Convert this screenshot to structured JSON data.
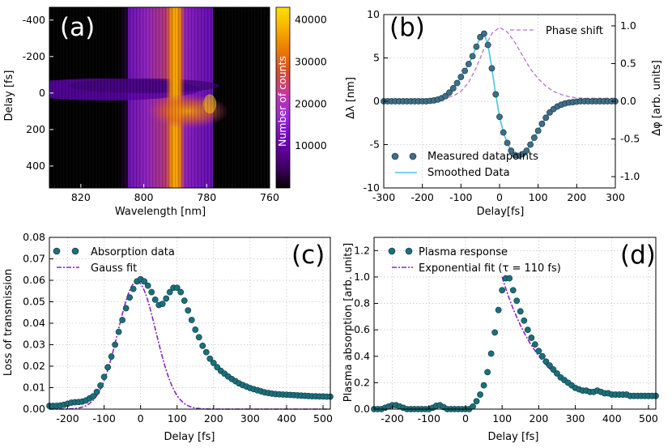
{
  "chart_data": [
    {
      "panel": "(a)",
      "type": "heatmap",
      "xlabel": "Wavelength [nm]",
      "ylabel": "Delay [fs]",
      "xlim": [
        830,
        760
      ],
      "ylim": [
        -470,
        520
      ],
      "xticks": [
        820,
        800,
        780,
        760
      ],
      "yticks": [
        -400,
        -200,
        0,
        200,
        400
      ],
      "colorbar": {
        "label": "Number of counts",
        "range": [
          0,
          43000
        ],
        "ticks": [
          10000,
          20000,
          30000,
          40000
        ],
        "colors": [
          "#000000",
          "#5a007a",
          "#8a1ee6",
          "#b62bb0",
          "#d6521f",
          "#f08a00",
          "#fcd000"
        ]
      },
      "features": [
        {
          "name": "peak band",
          "wavelength_nm": [
            793,
            787
          ],
          "delay_fs": [
            -470,
            520
          ],
          "level": 43000
        },
        {
          "name": "signal band",
          "wavelength_nm": [
            805,
            778
          ],
          "delay_fs": [
            -470,
            520
          ],
          "level": 15000
        },
        {
          "name": "blue-shift lobe",
          "wavelength_nm": [
            800,
            778
          ],
          "delay_fs": [
            40,
            220
          ],
          "level": 30000
        },
        {
          "name": "red-shift streak",
          "wavelength_nm": [
            825,
            805
          ],
          "delay_fs": [
            -80,
            40
          ],
          "level": 8000
        }
      ]
    },
    {
      "panel": "(b)",
      "type": "line",
      "xlabel": "Delay[fs]",
      "ylabel": "Δλ [nm]",
      "ylabel2": "Δφ [arb. units]",
      "xlim": [
        -300,
        300
      ],
      "ylim": [
        -10,
        10
      ],
      "ylim2": [
        -1.15,
        1.15
      ],
      "xticks": [
        -300,
        -200,
        -100,
        0,
        100,
        200,
        300
      ],
      "yticks": [
        -10,
        -5,
        0,
        5,
        10
      ],
      "yticks2": [
        -1.0,
        -0.5,
        0.0,
        0.5,
        1.0
      ],
      "series": [
        {
          "name": "Measured datapoints",
          "kind": "scatter",
          "color": "#3d6e8a",
          "x": [
            -300,
            -290,
            -280,
            -270,
            -260,
            -250,
            -240,
            -230,
            -220,
            -210,
            -200,
            -190,
            -180,
            -170,
            -160,
            -150,
            -140,
            -130,
            -120,
            -110,
            -100,
            -90,
            -80,
            -70,
            -60,
            -50,
            -40,
            -30,
            -20,
            -10,
            0,
            10,
            20,
            30,
            40,
            50,
            60,
            70,
            80,
            90,
            100,
            110,
            120,
            130,
            140,
            150,
            160,
            170,
            180,
            190,
            200,
            210,
            220,
            230,
            240,
            250,
            260,
            270,
            280,
            290,
            300
          ],
          "y": [
            0.0,
            0.0,
            0.0,
            0.0,
            0.0,
            0.0,
            0.0,
            0.0,
            0.0,
            0.0,
            0.0,
            0.0,
            0.05,
            0.1,
            0.2,
            0.35,
            0.6,
            1.0,
            1.5,
            2.1,
            2.8,
            3.5,
            4.3,
            5.2,
            6.3,
            7.4,
            7.8,
            6.5,
            3.8,
            0.8,
            -1.8,
            -3.6,
            -4.8,
            -5.7,
            -6.2,
            -6.3,
            -6.1,
            -5.7,
            -5.0,
            -4.2,
            -3.4,
            -2.6,
            -1.9,
            -1.3,
            -0.9,
            -0.6,
            -0.4,
            -0.25,
            -0.15,
            -0.1,
            -0.05,
            0.0,
            0.0,
            0.0,
            0.0,
            0.0,
            0.0,
            0.0,
            0.0,
            0.0,
            0.0
          ]
        },
        {
          "name": "Smoothed Data",
          "kind": "line",
          "color": "#46c7e6"
        },
        {
          "name": "Phase shift",
          "kind": "dashed",
          "color": "#b476c7",
          "axis": "right",
          "x": [
            -300,
            -280,
            -260,
            -240,
            -220,
            -200,
            -180,
            -160,
            -140,
            -120,
            -100,
            -80,
            -60,
            -40,
            -20,
            0,
            20,
            40,
            60,
            80,
            100,
            120,
            140,
            160,
            180,
            200,
            220,
            240,
            260,
            280,
            300
          ],
          "y": [
            0.03,
            0.03,
            0.03,
            0.03,
            0.03,
            0.03,
            0.03,
            0.035,
            0.045,
            0.07,
            0.13,
            0.25,
            0.45,
            0.7,
            0.9,
            0.98,
            0.92,
            0.78,
            0.6,
            0.43,
            0.3,
            0.2,
            0.13,
            0.09,
            0.06,
            0.045,
            0.04,
            0.04,
            0.04,
            0.04,
            0.04
          ]
        }
      ]
    },
    {
      "panel": "(c)",
      "type": "line",
      "xlabel": "Delay [fs]",
      "ylabel": "Loss of transmission",
      "xlim": [
        -250,
        520
      ],
      "ylim": [
        0.0,
        0.08
      ],
      "xticks": [
        -200,
        -100,
        0,
        100,
        200,
        300,
        400,
        500
      ],
      "yticks": [
        0.0,
        0.01,
        0.02,
        0.03,
        0.04,
        0.05,
        0.06,
        0.07,
        0.08
      ],
      "series": [
        {
          "name": "Absorption data",
          "kind": "scatter",
          "color": "#1a6f7a",
          "x": [
            -250,
            -240,
            -230,
            -220,
            -210,
            -200,
            -190,
            -180,
            -170,
            -160,
            -150,
            -140,
            -130,
            -120,
            -110,
            -100,
            -90,
            -80,
            -70,
            -60,
            -50,
            -40,
            -30,
            -20,
            -10,
            0,
            10,
            20,
            30,
            40,
            50,
            60,
            70,
            80,
            90,
            100,
            110,
            120,
            130,
            140,
            150,
            160,
            170,
            180,
            190,
            200,
            210,
            220,
            230,
            240,
            250,
            260,
            270,
            280,
            290,
            300,
            310,
            320,
            330,
            340,
            350,
            360,
            370,
            380,
            390,
            400,
            410,
            420,
            430,
            440,
            450,
            460,
            470,
            480,
            490,
            500,
            510,
            520
          ],
          "y": [
            0.0015,
            0.0015,
            0.0015,
            0.0017,
            0.002,
            0.0025,
            0.003,
            0.0032,
            0.0033,
            0.0035,
            0.004,
            0.005,
            0.006,
            0.008,
            0.011,
            0.015,
            0.0195,
            0.0245,
            0.03,
            0.036,
            0.0415,
            0.047,
            0.052,
            0.056,
            0.0595,
            0.0605,
            0.0595,
            0.0575,
            0.0545,
            0.051,
            0.0485,
            0.049,
            0.0515,
            0.0545,
            0.0565,
            0.0565,
            0.0545,
            0.0505,
            0.046,
            0.0415,
            0.037,
            0.0335,
            0.0295,
            0.0265,
            0.0235,
            0.0215,
            0.0195,
            0.0178,
            0.0165,
            0.0152,
            0.014,
            0.013,
            0.012,
            0.0112,
            0.0105,
            0.0098,
            0.0093,
            0.0088,
            0.0083,
            0.0078,
            0.0075,
            0.0072,
            0.007,
            0.0069,
            0.0068,
            0.0067,
            0.0066,
            0.0065,
            0.0064,
            0.0063,
            0.0062,
            0.0061,
            0.006,
            0.006,
            0.0059,
            0.0059,
            0.0058,
            0.0058
          ]
        },
        {
          "name": "Gauss fit",
          "kind": "dashdot",
          "color": "#8b22c9",
          "center": -10,
          "sigma": 52,
          "amplitude": 0.0595
        }
      ]
    },
    {
      "panel": "(d)",
      "type": "line",
      "xlabel": "Delay [fs]",
      "ylabel": "Plasma absorption [arb. units]",
      "xlim": [
        -250,
        520
      ],
      "ylim": [
        0.0,
        1.3
      ],
      "xticks": [
        -200,
        -100,
        0,
        100,
        200,
        300,
        400,
        500
      ],
      "yticks": [
        0.0,
        0.2,
        0.4,
        0.6,
        0.8,
        1.0,
        1.2
      ],
      "series": [
        {
          "name": "Plasma response",
          "kind": "scatter",
          "color": "#1a6f7a",
          "x": [
            -250,
            -240,
            -230,
            -220,
            -210,
            -200,
            -190,
            -180,
            -170,
            -160,
            -150,
            -140,
            -130,
            -120,
            -110,
            -100,
            -90,
            -80,
            -70,
            -60,
            -50,
            -40,
            -30,
            -20,
            -10,
            0,
            10,
            20,
            30,
            40,
            50,
            60,
            70,
            80,
            90,
            100,
            110,
            120,
            130,
            140,
            150,
            160,
            170,
            180,
            190,
            200,
            210,
            220,
            230,
            240,
            250,
            260,
            270,
            280,
            290,
            300,
            310,
            320,
            330,
            340,
            350,
            360,
            370,
            380,
            390,
            400,
            410,
            420,
            430,
            440,
            450,
            460,
            470,
            480,
            490,
            500,
            510,
            520
          ],
          "y": [
            0.0,
            0.0,
            0.0,
            0.01,
            0.02,
            0.03,
            0.03,
            0.02,
            0.01,
            0.0,
            0.0,
            0.0,
            0.0,
            0.0,
            0.0,
            0.0,
            0.01,
            0.025,
            0.03,
            0.015,
            0.0,
            0.0,
            0.0,
            0.0,
            0.0,
            0.0,
            0.0,
            0.02,
            0.06,
            0.11,
            0.18,
            0.28,
            0.42,
            0.58,
            0.75,
            0.9,
            0.99,
            0.99,
            0.9,
            0.82,
            0.74,
            0.67,
            0.6,
            0.54,
            0.49,
            0.44,
            0.4,
            0.36,
            0.33,
            0.3,
            0.27,
            0.24,
            0.22,
            0.2,
            0.18,
            0.16,
            0.15,
            0.14,
            0.14,
            0.13,
            0.13,
            0.14,
            0.13,
            0.12,
            0.12,
            0.11,
            0.11,
            0.11,
            0.11,
            0.11,
            0.1,
            0.1,
            0.1,
            0.1,
            0.1,
            0.1,
            0.1,
            0.1
          ]
        },
        {
          "name": "Exponential fit (τ = 110 fs)",
          "kind": "dashdot",
          "color": "#8b22c9",
          "tau_fs": 110,
          "x_start": 100,
          "x_end": 330,
          "amplitude": 1.0
        }
      ]
    }
  ]
}
